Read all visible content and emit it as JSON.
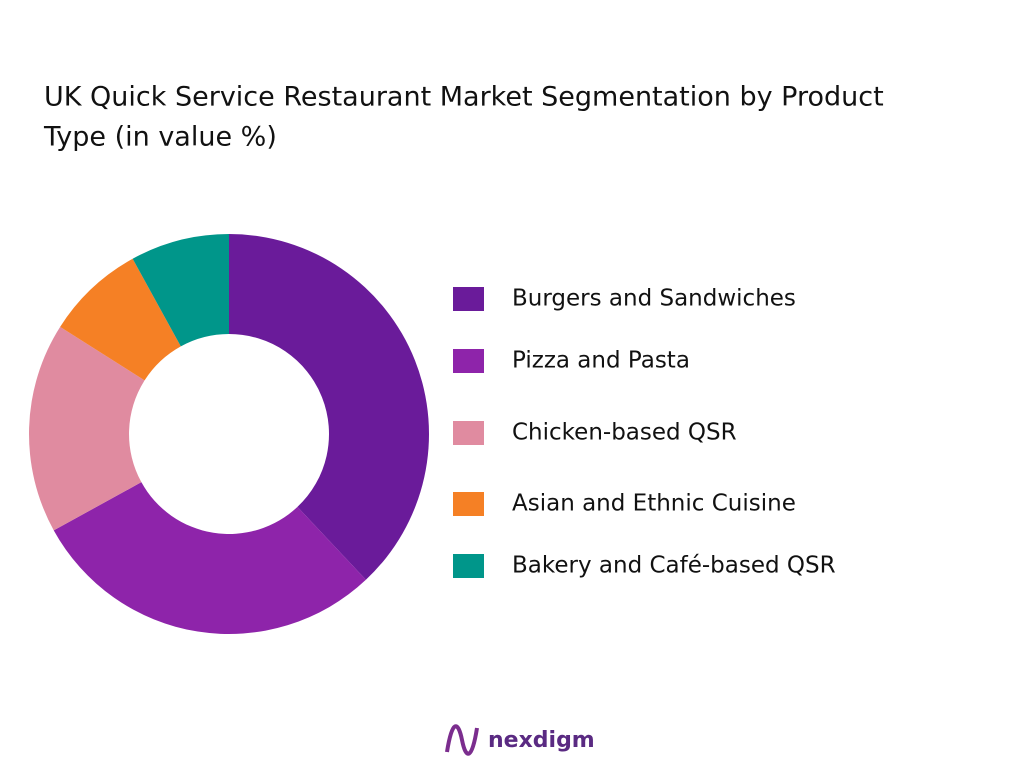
{
  "chart_data": {
    "type": "donut",
    "title_lines": [
      "UK Quick Service Restaurant Market Segmentation by Product",
      "Type  (in value %)"
    ],
    "categories": [
      "Burgers and Sandwiches",
      "Pizza and Pasta",
      "Chicken-based QSR",
      "Asian and Ethnic Cuisine",
      "Bakery and Café-based QSR"
    ],
    "values": [
      38,
      29,
      17,
      8,
      8
    ],
    "colors": [
      "#6a1b9a",
      "#8e24aa",
      "#e08ba0",
      "#f58025",
      "#00968a"
    ],
    "legend": "right"
  },
  "logo": "nexdigm"
}
